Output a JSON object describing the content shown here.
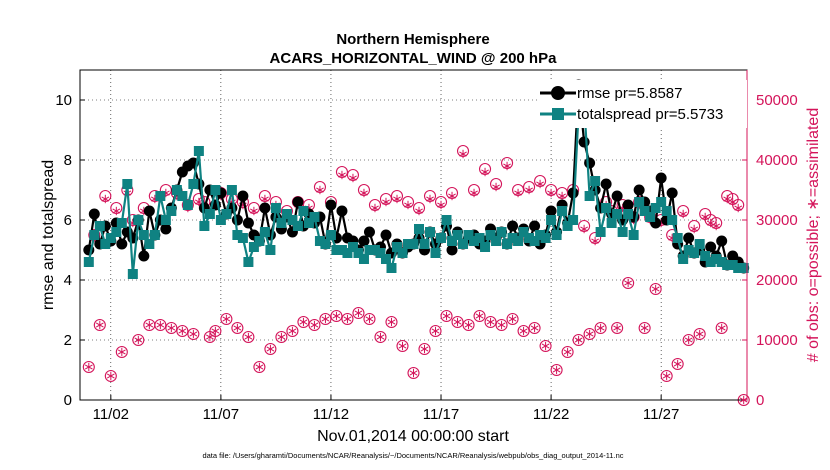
{
  "chart_data": {
    "type": "line",
    "title": "Northern Hemisphere",
    "subtitle": "ACARS_HORIZONTAL_WIND @ 200 hPa",
    "xlabel": "Nov.01,2014 00:00:00 start",
    "ylabel_left": "rmse and totalspread",
    "ylabel_right": "# of obs: o=possible; ∗=assimilated",
    "footnote": "data file: /Users/gharamti/Documents/NCAR/Reanalysis/~/Documents/NCAR/Reanalysis/webpub/obs_diag_output_2014-11.nc",
    "xlim": [
      0.6,
      30.9
    ],
    "ylim_left": [
      0,
      11
    ],
    "ylim_right": [
      0,
      55000
    ],
    "x_ticks": [
      2,
      7,
      12,
      17,
      22,
      27
    ],
    "x_tick_labels": [
      "11/02",
      "11/07",
      "11/12",
      "11/17",
      "11/22",
      "11/27"
    ],
    "y_ticks_left": [
      0,
      2,
      4,
      6,
      8,
      10
    ],
    "y_tick_labels_left": [
      "0",
      "2",
      "4",
      "6",
      "8",
      "10"
    ],
    "y_ticks_right": [
      0,
      10000,
      20000,
      30000,
      40000,
      50000
    ],
    "y_tick_labels_right": [
      "0",
      "10000",
      "20000",
      "30000",
      "40000",
      "50000"
    ],
    "legend": [
      {
        "label": "rmse pr=5.8587",
        "color": "#000000",
        "marker": "circle"
      },
      {
        "label": "totalspread pr=5.5733",
        "color": "#0f8282",
        "marker": "square"
      }
    ],
    "legend_position": "top-right",
    "grid": true,
    "colors": {
      "rmse": "#000000",
      "spread": "#0f8282",
      "obs": "#d4145a"
    },
    "series": [
      {
        "name": "rmse",
        "x": [
          1.0,
          1.25,
          1.5,
          1.75,
          2.0,
          2.25,
          2.5,
          2.75,
          3.0,
          3.25,
          3.5,
          3.75,
          4.0,
          4.25,
          4.5,
          4.75,
          5.0,
          5.25,
          5.5,
          5.75,
          6.0,
          6.25,
          6.5,
          6.75,
          7.0,
          7.25,
          7.5,
          7.75,
          8.0,
          8.25,
          8.5,
          8.75,
          9.0,
          9.25,
          9.5,
          9.75,
          10.0,
          10.25,
          10.5,
          10.75,
          11.0,
          11.25,
          11.5,
          11.75,
          12.0,
          12.25,
          12.5,
          12.75,
          13.0,
          13.25,
          13.5,
          13.75,
          14.0,
          14.25,
          14.5,
          14.75,
          15.0,
          15.25,
          15.5,
          15.75,
          16.0,
          16.25,
          16.5,
          16.75,
          17.0,
          17.25,
          17.5,
          17.75,
          18.0,
          18.25,
          18.5,
          18.75,
          19.0,
          19.25,
          19.5,
          19.75,
          20.0,
          20.25,
          20.5,
          20.75,
          21.0,
          21.25,
          21.5,
          21.75,
          22.0,
          22.25,
          22.5,
          22.75,
          23.0,
          23.25,
          23.5,
          23.75,
          24.0,
          24.25,
          24.5,
          24.75,
          25.0,
          25.25,
          25.5,
          25.75,
          26.0,
          26.25,
          26.5,
          26.75,
          27.0,
          27.25,
          27.5,
          27.75,
          28.0,
          28.25,
          28.5,
          28.75,
          29.0,
          29.25,
          29.5,
          29.75,
          30.0,
          30.25,
          30.5,
          30.75
        ],
        "values": [
          5.0,
          6.2,
          5.2,
          5.8,
          5.3,
          5.9,
          5.2,
          5.6,
          5.4,
          6.0,
          4.8,
          6.3,
          5.5,
          6.0,
          5.7,
          6.4,
          7.0,
          7.6,
          7.8,
          7.9,
          7.2,
          6.4,
          7.0,
          6.5,
          6.9,
          6.2,
          6.4,
          6.0,
          6.8,
          5.9,
          5.5,
          5.3,
          6.4,
          5.5,
          6.1,
          5.7,
          6.1,
          5.6,
          6.6,
          5.8,
          6.2,
          5.9,
          6.1,
          5.2,
          6.5,
          5.4,
          6.3,
          5.4,
          5.3,
          5.0,
          5.3,
          5.6,
          5.0,
          5.1,
          5.5,
          4.9,
          5.2,
          4.9,
          5.1,
          5.2,
          5.4,
          5.0,
          5.6,
          5.2,
          5.4,
          5.8,
          5.0,
          5.6,
          5.2,
          5.4,
          5.5,
          5.2,
          5.3,
          5.7,
          5.4,
          5.6,
          5.2,
          5.8,
          5.4,
          5.7,
          5.3,
          5.8,
          5.2,
          5.5,
          6.3,
          5.6,
          6.5,
          5.9,
          6.9,
          10.5,
          8.6,
          7.9,
          7.0,
          6.4,
          7.2,
          6.2,
          6.8,
          6.0,
          6.5,
          6.1,
          7.0,
          6.6,
          6.3,
          5.9,
          7.4,
          6.0,
          6.9,
          5.2,
          4.8,
          5.4,
          4.9,
          5.0,
          4.6,
          5.1,
          4.8,
          5.3,
          4.5,
          4.8,
          4.6,
          4.4
        ]
      },
      {
        "name": "totalspread",
        "x": [
          1.0,
          1.25,
          1.5,
          1.75,
          2.0,
          2.25,
          2.5,
          2.75,
          3.0,
          3.25,
          3.5,
          3.75,
          4.0,
          4.25,
          4.5,
          4.75,
          5.0,
          5.25,
          5.5,
          5.75,
          6.0,
          6.25,
          6.5,
          6.75,
          7.0,
          7.25,
          7.5,
          7.75,
          8.0,
          8.25,
          8.5,
          8.75,
          9.0,
          9.25,
          9.5,
          9.75,
          10.0,
          10.25,
          10.5,
          10.75,
          11.0,
          11.25,
          11.5,
          11.75,
          12.0,
          12.25,
          12.5,
          12.75,
          13.0,
          13.25,
          13.5,
          13.75,
          14.0,
          14.25,
          14.5,
          14.75,
          15.0,
          15.25,
          15.5,
          15.75,
          16.0,
          16.25,
          16.5,
          16.75,
          17.0,
          17.25,
          17.5,
          17.75,
          18.0,
          18.25,
          18.5,
          18.75,
          19.0,
          19.25,
          19.5,
          19.75,
          20.0,
          20.25,
          20.5,
          20.75,
          21.0,
          21.25,
          21.5,
          21.75,
          22.0,
          22.25,
          22.5,
          22.75,
          23.0,
          23.25,
          23.5,
          23.75,
          24.0,
          24.25,
          24.5,
          24.75,
          25.0,
          25.25,
          25.5,
          25.75,
          26.0,
          26.25,
          26.5,
          26.75,
          27.0,
          27.25,
          27.5,
          27.75,
          28.0,
          28.25,
          28.5,
          28.75,
          29.0,
          29.25,
          29.5,
          29.75,
          30.0,
          30.25,
          30.5,
          30.75
        ],
        "values": [
          4.6,
          5.5,
          5.8,
          5.2,
          5.4,
          5.6,
          5.9,
          7.2,
          4.2,
          6.0,
          5.5,
          5.2,
          5.5,
          6.8,
          6.0,
          6.3,
          7.0,
          6.8,
          6.5,
          7.2,
          8.3,
          5.8,
          6.2,
          7.0,
          6.0,
          6.2,
          7.0,
          5.5,
          5.4,
          4.6,
          5.1,
          5.3,
          5.6,
          5.0,
          6.4,
          5.9,
          6.2,
          6.0,
          5.8,
          6.3,
          5.9,
          6.1,
          5.3,
          5.2,
          5.5,
          5.0,
          5.0,
          4.9,
          5.1,
          4.9,
          4.7,
          5.0,
          5.0,
          4.9,
          4.7,
          4.4,
          5.1,
          4.9,
          5.2,
          5.2,
          5.7,
          5.2,
          5.6,
          4.9,
          5.4,
          6.0,
          5.3,
          5.5,
          5.2,
          5.5,
          5.3,
          5.4,
          5.1,
          5.5,
          5.3,
          5.6,
          5.2,
          5.4,
          5.3,
          5.6,
          5.4,
          5.3,
          5.5,
          5.4,
          6.0,
          5.5,
          6.3,
          5.8,
          6.0,
          9.6,
          9.9,
          6.8,
          7.3,
          5.6,
          6.4,
          5.9,
          6.2,
          5.6,
          6.2,
          5.5,
          6.6,
          6.3,
          6.1,
          6.4,
          6.6,
          6.3,
          6.0,
          5.4,
          4.7,
          5.0,
          4.9,
          5.2,
          4.8,
          4.6,
          4.7,
          4.6,
          4.5,
          4.5,
          4.4,
          4.4
        ]
      },
      {
        "name": "obs possible",
        "axis": "right",
        "x": [
          1.0,
          1.25,
          1.5,
          1.75,
          2.0,
          2.25,
          2.5,
          2.75,
          3.0,
          3.25,
          3.5,
          3.75,
          4.0,
          4.25,
          4.5,
          4.75,
          5.0,
          5.25,
          5.5,
          5.75,
          6.0,
          6.25,
          6.5,
          6.75,
          7.0,
          7.25,
          7.5,
          7.75,
          8.0,
          8.25,
          8.5,
          8.75,
          9.0,
          9.25,
          9.5,
          9.75,
          10.0,
          10.25,
          10.5,
          10.75,
          11.0,
          11.25,
          11.5,
          11.75,
          12.0,
          12.25,
          12.5,
          12.75,
          13.0,
          13.25,
          13.5,
          13.75,
          14.0,
          14.25,
          14.5,
          14.75,
          15.0,
          15.25,
          15.5,
          15.75,
          16.0,
          16.25,
          16.5,
          16.75,
          17.0,
          17.25,
          17.5,
          17.75,
          18.0,
          18.25,
          18.5,
          18.75,
          19.0,
          19.25,
          19.5,
          19.75,
          20.0,
          20.25,
          20.5,
          20.75,
          21.0,
          21.25,
          21.5,
          21.75,
          22.0,
          22.25,
          22.5,
          22.75,
          23.0,
          23.25,
          23.5,
          23.75,
          24.0,
          24.25,
          24.5,
          24.75,
          25.0,
          25.25,
          25.5,
          25.75,
          26.0,
          26.25,
          26.5,
          26.75,
          27.0,
          27.25,
          27.5,
          27.75,
          28.0,
          28.25,
          28.5,
          28.75,
          29.0,
          29.25,
          29.5,
          29.75,
          30.0,
          30.25,
          30.5,
          30.75
        ],
        "values": [
          5500,
          27500,
          12500,
          34000,
          4000,
          32000,
          8000,
          35000,
          30000,
          10000,
          32000,
          12500,
          34000,
          12500,
          35000,
          12000,
          34500,
          11500,
          32500,
          11000,
          33500,
          33000,
          10500,
          11500,
          34500,
          13500,
          33500,
          12000,
          33000,
          10500,
          32000,
          5500,
          34000,
          8500,
          33000,
          10500,
          31500,
          11500,
          33000,
          13000,
          32500,
          12500,
          35500,
          13500,
          33000,
          14000,
          38000,
          13500,
          37500,
          14500,
          35000,
          13500,
          32500,
          10500,
          33500,
          13000,
          34000,
          9000,
          33000,
          4500,
          32000,
          8500,
          34000,
          11500,
          33000,
          14000,
          34500,
          13000,
          41500,
          12500,
          35000,
          14000,
          38500,
          13000,
          36000,
          12500,
          39500,
          13500,
          35000,
          11500,
          35500,
          12000,
          36500,
          9000,
          35000,
          5000,
          34500,
          8000,
          35000,
          10000,
          29000,
          11000,
          27000,
          12000,
          33000,
          31500,
          12000,
          32500,
          19500,
          30500,
          33000,
          12000,
          30500,
          18500,
          30000,
          4000,
          27500,
          6000,
          31500,
          10000,
          29000,
          11000,
          31000,
          30000,
          29500,
          12000,
          34000,
          33500,
          32500,
          0
        ]
      },
      {
        "name": "obs assimilated",
        "axis": "right",
        "x": [
          1.0,
          1.25,
          1.5,
          1.75,
          2.0,
          2.25,
          2.5,
          2.75,
          3.0,
          3.25,
          3.5,
          3.75,
          4.0,
          4.25,
          4.5,
          4.75,
          5.0,
          5.25,
          5.5,
          5.75,
          6.0,
          6.25,
          6.5,
          6.75,
          7.0,
          7.25,
          7.5,
          7.75,
          8.0,
          8.25,
          8.5,
          8.75,
          9.0,
          9.25,
          9.5,
          9.75,
          10.0,
          10.25,
          10.5,
          10.75,
          11.0,
          11.25,
          11.5,
          11.75,
          12.0,
          12.25,
          12.5,
          12.75,
          13.0,
          13.25,
          13.5,
          13.75,
          14.0,
          14.25,
          14.5,
          14.75,
          15.0,
          15.25,
          15.5,
          15.75,
          16.0,
          16.25,
          16.5,
          16.75,
          17.0,
          17.25,
          17.5,
          17.75,
          18.0,
          18.25,
          18.5,
          18.75,
          19.0,
          19.25,
          19.5,
          19.75,
          20.0,
          20.25,
          20.5,
          20.75,
          21.0,
          21.25,
          21.5,
          21.75,
          22.0,
          22.25,
          22.5,
          22.75,
          23.0,
          23.25,
          23.5,
          23.75,
          24.0,
          24.25,
          24.5,
          24.75,
          25.0,
          25.25,
          25.5,
          25.75,
          26.0,
          26.25,
          26.5,
          26.75,
          27.0,
          27.25,
          27.5,
          27.75,
          28.0,
          28.25,
          28.5,
          28.75,
          29.0,
          29.25,
          29.5,
          29.75,
          30.0,
          30.25,
          30.5,
          30.75
        ],
        "values": [
          5500,
          27000,
          12500,
          33500,
          4000,
          31500,
          8000,
          34500,
          29500,
          10000,
          31500,
          12500,
          33500,
          12500,
          34500,
          12000,
          34000,
          11500,
          32000,
          11000,
          33000,
          32500,
          10500,
          11500,
          34000,
          13500,
          33000,
          12000,
          32500,
          10500,
          31500,
          5500,
          33500,
          8500,
          32500,
          10500,
          31000,
          11500,
          32500,
          13000,
          32000,
          12500,
          35000,
          13500,
          32500,
          14000,
          37500,
          13500,
          37000,
          14500,
          34500,
          13500,
          32000,
          10500,
          33000,
          13000,
          33500,
          9000,
          32500,
          4500,
          31500,
          8500,
          33500,
          11500,
          32500,
          14000,
          34000,
          13000,
          41000,
          12500,
          34500,
          14000,
          38000,
          13000,
          35500,
          12500,
          39000,
          13500,
          34500,
          11500,
          35000,
          12000,
          36000,
          9000,
          34500,
          5000,
          34000,
          8000,
          34500,
          10000,
          28500,
          11000,
          26500,
          12000,
          32500,
          31000,
          12000,
          32000,
          19500,
          30000,
          32500,
          12000,
          30000,
          18500,
          29500,
          4000,
          27000,
          6000,
          31000,
          10000,
          28500,
          11000,
          30500,
          29500,
          29000,
          12000,
          33500,
          33000,
          32000,
          0
        ]
      }
    ]
  }
}
